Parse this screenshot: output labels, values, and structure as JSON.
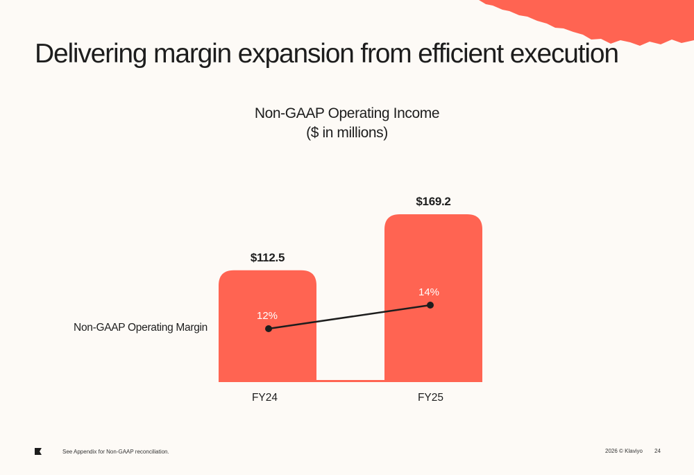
{
  "slide": {
    "title": "Delivering margin expansion from efficient execution",
    "footnote": "See Appendix for Non-GAAP reconciliation.",
    "copyright": "2026 © Klaviyo",
    "page_number": "24"
  },
  "colors": {
    "accent": "#FF6452",
    "background": "#FDFAF6",
    "text": "#1d1d1d",
    "line": "#1d1d1d"
  },
  "chart_data": {
    "type": "bar",
    "title": "Non-GAAP Operating Income",
    "subtitle": "($ in millions)",
    "categories": [
      "FY24",
      "FY25"
    ],
    "series": [
      {
        "type": "bar",
        "values": [
          112.5,
          169.2
        ],
        "value_labels": [
          "$112.5",
          "$169.2"
        ]
      },
      {
        "name": "Non-GAAP Operating Margin",
        "type": "line",
        "values": [
          12,
          14
        ],
        "value_labels": [
          "12%",
          "14%"
        ]
      }
    ],
    "ylim": [
      0,
      169.2
    ],
    "grid": false,
    "legend": "left"
  }
}
